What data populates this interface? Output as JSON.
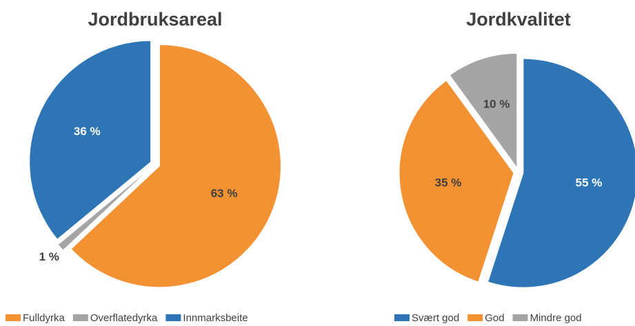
{
  "chart_data": [
    {
      "type": "pie",
      "title": "Jordbruksareal",
      "categories": [
        "Fulldyrka",
        "Overflatedyrka",
        "Innmarksbeite"
      ],
      "values": [
        63,
        1,
        36
      ],
      "value_labels": [
        "63 %",
        "1 %",
        "36 %"
      ],
      "colors": [
        "#f39232",
        "#a5a5a5",
        "#2e75b6"
      ]
    },
    {
      "type": "pie",
      "title": "Jordkvalitet",
      "categories": [
        "Svært god",
        "God",
        "Mindre god"
      ],
      "values": [
        55,
        35,
        10
      ],
      "value_labels": [
        "55 %",
        "35 %",
        "10 %"
      ],
      "colors": [
        "#2e75b6",
        "#f39232",
        "#a5a5a5"
      ]
    }
  ]
}
